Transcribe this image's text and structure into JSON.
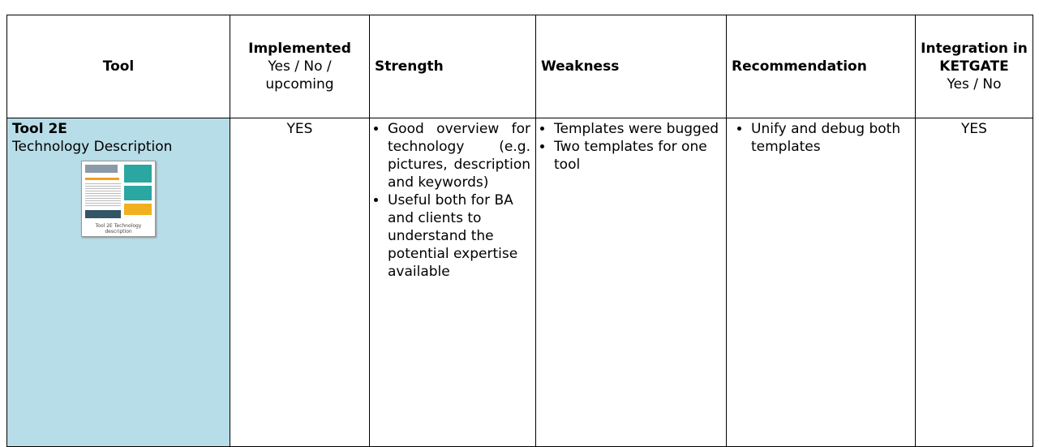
{
  "table": {
    "headers": [
      {
        "title": "Tool"
      },
      {
        "title": "Implemented",
        "subtitle": "Yes / No / upcoming"
      },
      {
        "title": "Strength"
      },
      {
        "title": "Weakness"
      },
      {
        "title": "Recommendation"
      },
      {
        "title": "Integration in KETGATE",
        "subtitle": "Yes / No"
      }
    ],
    "rows": [
      {
        "tool": {
          "title": "Tool 2E",
          "subtitle": "Technology Description",
          "thumbnail_caption": "Tool 2E Technology description"
        },
        "implemented": "YES",
        "strength": [
          "Good overview for technology (e.g. pictures, description and keywords)",
          "Useful both for BA and clients to understand the potential expertise available"
        ],
        "weakness": [
          "Templates were bugged",
          "Two templates for one tool"
        ],
        "recommendation": [
          "Unify and debug both templates"
        ],
        "integration": "YES"
      }
    ]
  }
}
